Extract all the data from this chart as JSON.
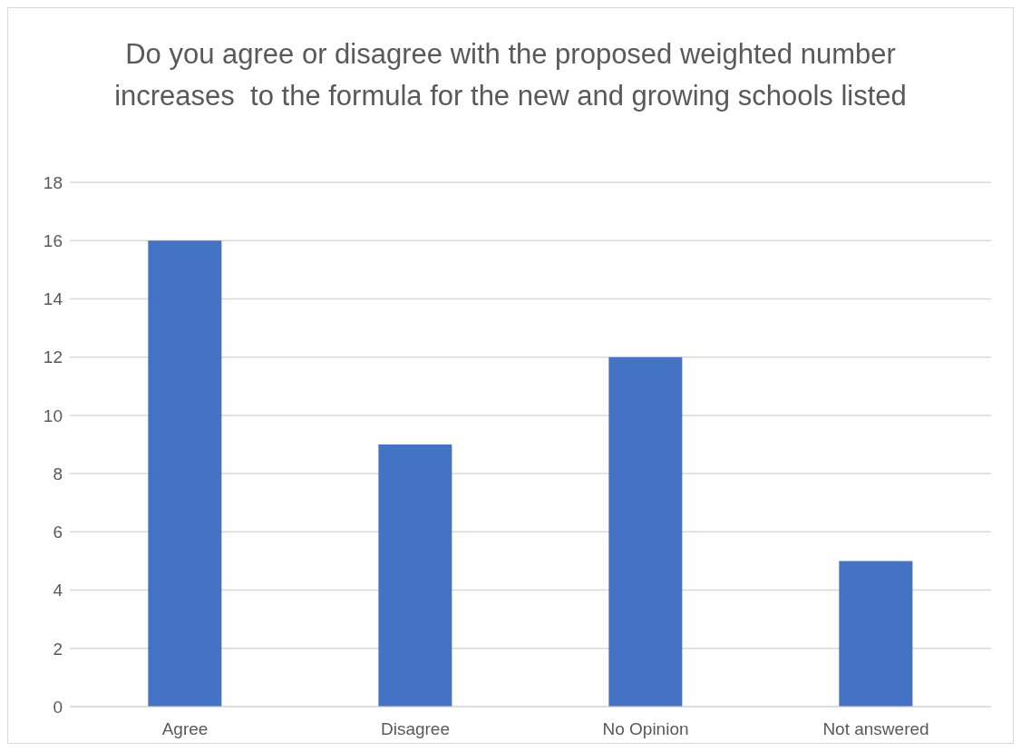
{
  "chart_data": {
    "type": "bar",
    "title": "Do you agree or disagree with the proposed weighted number increases  to the formula for the new and growing schools listed",
    "categories": [
      "Agree",
      "Disagree",
      "No Opinion",
      "Not answered"
    ],
    "values": [
      16,
      9,
      12,
      5
    ],
    "color": "#4472c4",
    "ylim": [
      0,
      18
    ],
    "yticks": [
      0,
      2,
      4,
      6,
      8,
      10,
      12,
      14,
      16,
      18
    ],
    "grid": "y"
  }
}
